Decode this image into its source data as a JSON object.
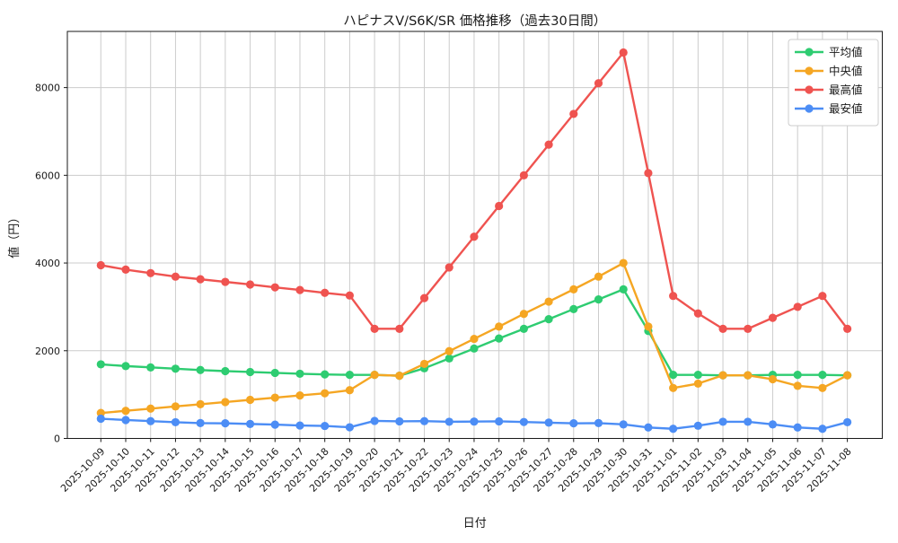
{
  "chart_data": {
    "type": "line",
    "title": "ハピナスV/S6K/SR 価格推移（過去30日間）",
    "xlabel": "日付",
    "ylabel": "値（円）",
    "grid": true,
    "legend_position": "upper right",
    "y_ticks": [
      0,
      2000,
      4000,
      6000,
      8000
    ],
    "ylim": [
      0,
      9300
    ],
    "x": [
      "2025-10-09",
      "2025-10-10",
      "2025-10-11",
      "2025-10-12",
      "2025-10-13",
      "2025-10-14",
      "2025-10-15",
      "2025-10-16",
      "2025-10-17",
      "2025-10-18",
      "2025-10-19",
      "2025-10-20",
      "2025-10-21",
      "2025-10-22",
      "2025-10-23",
      "2025-10-24",
      "2025-10-25",
      "2025-10-26",
      "2025-10-27",
      "2025-10-28",
      "2025-10-29",
      "2025-10-30",
      "2025-10-31",
      "2025-11-01",
      "2025-11-02",
      "2025-11-03",
      "2025-11-04",
      "2025-11-05",
      "2025-11-06",
      "2025-11-07",
      "2025-11-08"
    ],
    "series": [
      {
        "name": "平均値",
        "color": "#2ecc71",
        "values": [
          1690,
          1650,
          1620,
          1590,
          1560,
          1535,
          1515,
          1495,
          1475,
          1460,
          1450,
          1450,
          1430,
          1600,
          1825,
          2050,
          2280,
          2500,
          2720,
          2950,
          3170,
          3400,
          2450,
          1450,
          1450,
          1440,
          1440,
          1450,
          1450,
          1450,
          1440
        ]
      },
      {
        "name": "中央値",
        "color": "#f5a623",
        "values": [
          580,
          630,
          680,
          730,
          780,
          830,
          880,
          930,
          980,
          1030,
          1100,
          1450,
          1430,
          1700,
          1990,
          2270,
          2550,
          2840,
          3120,
          3400,
          3690,
          4000,
          2550,
          1150,
          1250,
          1440,
          1440,
          1350,
          1200,
          1150,
          1440
        ]
      },
      {
        "name": "最高値",
        "color": "#ef5350",
        "values": [
          3950,
          3850,
          3770,
          3690,
          3630,
          3570,
          3510,
          3445,
          3385,
          3320,
          3260,
          2500,
          2500,
          3200,
          3900,
          4600,
          5300,
          6000,
          6700,
          7400,
          8100,
          8800,
          6050,
          3250,
          2850,
          2500,
          2500,
          2750,
          3000,
          3250,
          2500
        ]
      },
      {
        "name": "最安値",
        "color": "#4c8df5",
        "values": [
          450,
          420,
          395,
          370,
          350,
          345,
          330,
          315,
          295,
          285,
          255,
          400,
          390,
          395,
          380,
          385,
          390,
          375,
          360,
          345,
          350,
          320,
          250,
          220,
          290,
          380,
          380,
          320,
          250,
          220,
          370
        ]
      }
    ]
  }
}
